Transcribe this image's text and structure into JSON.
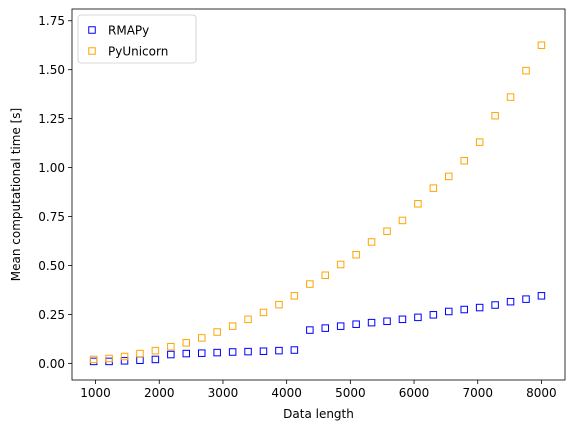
{
  "chart_data": {
    "type": "scatter",
    "title": "",
    "xlabel": "Data length",
    "ylabel": "Mean computational time [s]",
    "xlim": [
      630,
      8370
    ],
    "ylim": [
      -0.085,
      1.81
    ],
    "xticks": [
      1000,
      2000,
      3000,
      4000,
      5000,
      6000,
      7000,
      8000
    ],
    "xtick_labels": [
      "1000",
      "2000",
      "3000",
      "4000",
      "5000",
      "6000",
      "7000",
      "8000"
    ],
    "yticks": [
      0.0,
      0.25,
      0.5,
      0.75,
      1.0,
      1.25,
      1.5,
      1.75
    ],
    "ytick_labels": [
      "0.00",
      "0.25",
      "0.50",
      "0.75",
      "1.00",
      "1.25",
      "1.50",
      "1.75"
    ],
    "grid": false,
    "legend_position": "top-left",
    "marker": "hollow-square",
    "x": [
      970,
      1212,
      1455,
      1697,
      1939,
      2182,
      2424,
      2667,
      2909,
      3152,
      3394,
      3636,
      3879,
      4121,
      4364,
      4606,
      4848,
      5091,
      5333,
      5576,
      5818,
      6061,
      6303,
      6545,
      6788,
      7030,
      7273,
      7515,
      7758,
      8000
    ],
    "series": [
      {
        "name": "RMAPy",
        "color": "#0000ff",
        "values": [
          0.01,
          0.01,
          0.013,
          0.016,
          0.02,
          0.045,
          0.05,
          0.052,
          0.055,
          0.058,
          0.06,
          0.062,
          0.065,
          0.068,
          0.17,
          0.18,
          0.19,
          0.2,
          0.208,
          0.215,
          0.225,
          0.235,
          0.248,
          0.265,
          0.275,
          0.285,
          0.298,
          0.315,
          0.328,
          0.345
        ]
      },
      {
        "name": "PyUnicorn",
        "color": "#ffa500",
        "values": [
          0.02,
          0.025,
          0.035,
          0.05,
          0.065,
          0.085,
          0.105,
          0.13,
          0.16,
          0.19,
          0.225,
          0.26,
          0.3,
          0.345,
          0.405,
          0.45,
          0.505,
          0.555,
          0.62,
          0.675,
          0.73,
          0.815,
          0.895,
          0.955,
          1.035,
          1.13,
          1.265,
          1.36,
          1.495,
          1.625
        ]
      }
    ]
  }
}
